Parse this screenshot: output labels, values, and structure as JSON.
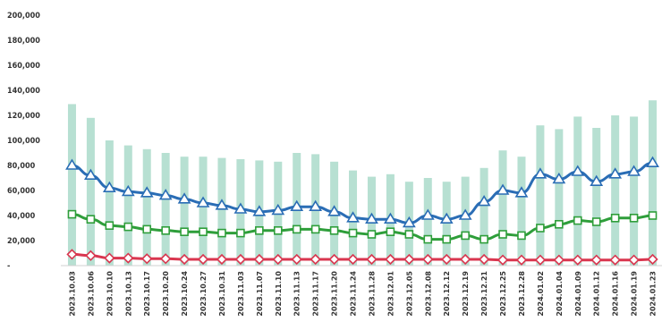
{
  "chart_data": {
    "type": "bar",
    "title": "",
    "xlabel": "",
    "ylabel": "",
    "ylim": [
      0,
      200000
    ],
    "y_ticks": [
      "200,000",
      "180,000",
      "160,000",
      "140,000",
      "120,000",
      "100,000",
      "80,000",
      "60,000",
      "40,000",
      "20,000",
      "-"
    ],
    "y_tick_values": [
      200000,
      180000,
      160000,
      140000,
      120000,
      100000,
      80000,
      60000,
      40000,
      20000,
      0
    ],
    "grid": false,
    "legend": "none",
    "categories": [
      "2023.10.03",
      "2023.10.06",
      "2023.10.10",
      "2023.10.13",
      "2023.10.17",
      "2023.10.20",
      "2023.10.24",
      "2023.10.27",
      "2023.10.31",
      "2023.11.03",
      "2023.11.07",
      "2023.11.10",
      "2023.11.13",
      "2023.11.17",
      "2023.11.20",
      "2023.11.24",
      "2023.11.28",
      "2023.12.01",
      "2023.12.05",
      "2023.12.08",
      "2023.12.12",
      "2023.12.19",
      "2023.12.21",
      "2023.12.25",
      "2023.12.28",
      "2024.01.02",
      "2024.01.04",
      "2024.01.09",
      "2024.01.12",
      "2024.01.16",
      "2024.01.19",
      "2024.01.23"
    ],
    "series": [
      {
        "kind": "bar",
        "color": "#b7e0d2",
        "values": [
          129000,
          118000,
          100000,
          96000,
          93000,
          90000,
          87000,
          87000,
          86000,
          85000,
          84000,
          83000,
          90000,
          89000,
          83000,
          76000,
          71000,
          73000,
          67000,
          70000,
          67000,
          71000,
          78000,
          92000,
          87000,
          112000,
          109000,
          119000,
          110000,
          120000,
          119000,
          132000
        ]
      },
      {
        "kind": "line",
        "color": "#2a6db5",
        "marker": "triangle",
        "values": [
          80000,
          72000,
          62000,
          59000,
          58000,
          56000,
          53000,
          50000,
          48000,
          45000,
          43000,
          44000,
          47000,
          47000,
          43000,
          38000,
          37000,
          37000,
          34000,
          40000,
          37000,
          40000,
          51000,
          60000,
          58000,
          73000,
          69000,
          75000,
          67000,
          73000,
          75000,
          82000
        ]
      },
      {
        "kind": "line",
        "color": "#2e9e3a",
        "marker": "square",
        "values": [
          41000,
          37000,
          32000,
          31000,
          29000,
          28000,
          27000,
          27000,
          26000,
          26000,
          28000,
          28000,
          29000,
          29000,
          28000,
          26000,
          25000,
          27000,
          25000,
          21000,
          21000,
          24000,
          21000,
          25000,
          24000,
          30000,
          33000,
          36000,
          35000,
          38000,
          38000,
          40000
        ]
      },
      {
        "kind": "line",
        "color": "#d9364f",
        "marker": "diamond",
        "values": [
          9000,
          8000,
          6000,
          6000,
          5500,
          5500,
          5000,
          5000,
          5000,
          5000,
          5000,
          5000,
          5000,
          5000,
          5000,
          5000,
          5000,
          5000,
          5000,
          5000,
          5000,
          5000,
          5000,
          4500,
          4500,
          4500,
          4500,
          4500,
          4500,
          4500,
          4500,
          5000
        ]
      }
    ]
  }
}
